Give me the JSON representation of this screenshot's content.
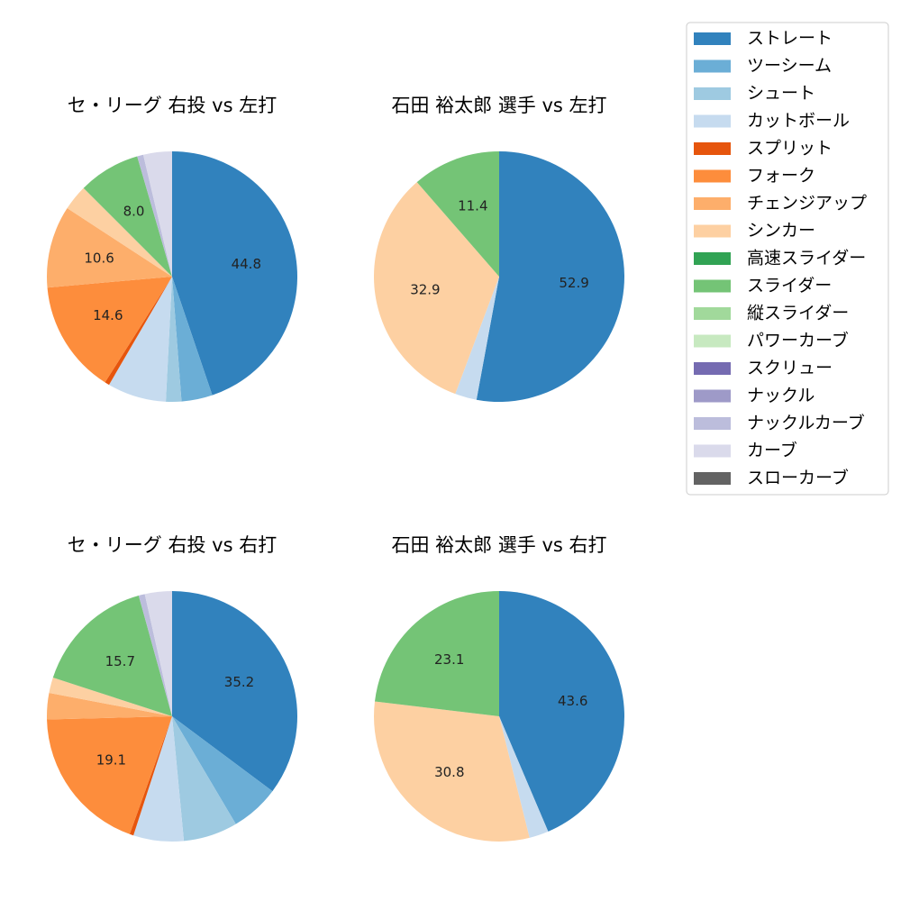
{
  "chart_data": {
    "type": "pie",
    "categories": [
      "ストレート",
      "ツーシーム",
      "シュート",
      "カットボール",
      "スプリット",
      "フォーク",
      "チェンジアップ",
      "シンカー",
      "高速スライダー",
      "スライダー",
      "縦スライダー",
      "パワーカーブ",
      "スクリュー",
      "ナックル",
      "ナックルカーブ",
      "カーブ",
      "スローカーブ"
    ],
    "colors": [
      "#3182bd",
      "#6baed6",
      "#9ecae1",
      "#c6dbef",
      "#e6550d",
      "#fd8d3c",
      "#fdae6b",
      "#fdd0a2",
      "#31a354",
      "#74c476",
      "#a1d99b",
      "#c7e9c0",
      "#756bb1",
      "#9e9ac8",
      "#bcbddc",
      "#dadaeb",
      "#636363"
    ],
    "legend_placement": "upper-right",
    "charts": [
      {
        "title": "セ・リーグ 右投 vs 左打",
        "values": [
          44.8,
          4.0,
          2.0,
          7.6,
          0.6,
          14.6,
          10.6,
          3.3,
          0,
          8.0,
          0,
          0,
          0,
          0,
          0.8,
          3.7,
          0
        ],
        "labels": [
          "44.8",
          "",
          "",
          "",
          "",
          "14.6",
          "10.6",
          "",
          "",
          "8.0",
          "",
          "",
          "",
          "",
          "",
          "",
          ""
        ]
      },
      {
        "title": "石田 裕太郎 選手 vs 左打",
        "values": [
          52.9,
          0,
          0,
          2.8,
          0,
          0,
          0,
          32.9,
          0,
          11.4,
          0,
          0,
          0,
          0,
          0,
          0,
          0
        ],
        "labels": [
          "52.9",
          "",
          "",
          "",
          "",
          "",
          "",
          "32.9",
          "",
          "11.4",
          "",
          "",
          "",
          "",
          "",
          "",
          ""
        ]
      },
      {
        "title": "セ・リーグ 右投 vs 右打",
        "values": [
          35.2,
          6.3,
          7.0,
          6.5,
          0.5,
          19.1,
          3.4,
          2.0,
          0,
          15.7,
          0,
          0,
          0,
          0,
          0.8,
          3.5,
          0
        ],
        "labels": [
          "35.2",
          "",
          "",
          "",
          "",
          "19.1",
          "",
          "",
          "",
          "15.7",
          "",
          "",
          "",
          "",
          "",
          "",
          ""
        ]
      },
      {
        "title": "石田 裕太郎 選手 vs 右打",
        "values": [
          43.6,
          0,
          0,
          2.5,
          0,
          0,
          0,
          30.8,
          0,
          23.1,
          0,
          0,
          0,
          0,
          0,
          0,
          0
        ],
        "labels": [
          "43.6",
          "",
          "",
          "",
          "",
          "",
          "",
          "30.8",
          "",
          "23.1",
          "",
          "",
          "",
          "",
          "",
          "",
          ""
        ]
      }
    ]
  }
}
